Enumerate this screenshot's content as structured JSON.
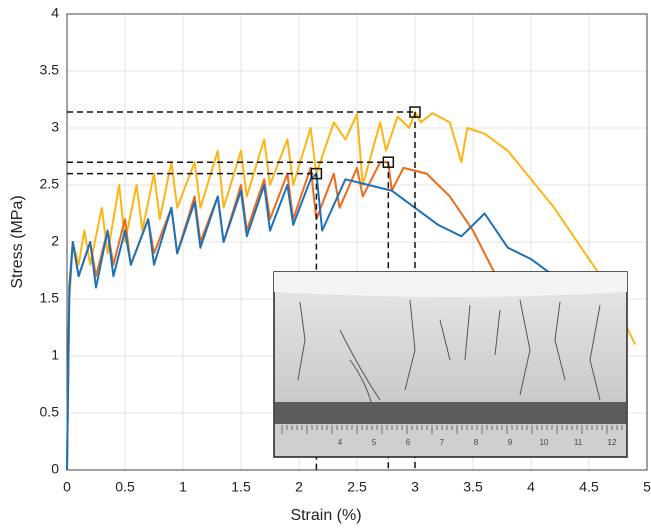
{
  "chart_data": {
    "type": "line",
    "xlabel": "Strain (%)",
    "ylabel": "Stress (MPa)",
    "xlim": [
      0,
      5
    ],
    "ylim": [
      0,
      4
    ],
    "xticks": [
      0,
      0.5,
      1,
      1.5,
      2,
      2.5,
      3,
      3.5,
      4,
      4.5,
      5
    ],
    "yticks": [
      0,
      0.5,
      1,
      1.5,
      2,
      2.5,
      3,
      3.5,
      4
    ],
    "grid": true,
    "series": [
      {
        "color": "#fdb515",
        "peak": [
          3.0,
          3.14
        ],
        "x": [
          0,
          0.02,
          0.05,
          0.1,
          0.15,
          0.2,
          0.3,
          0.35,
          0.45,
          0.5,
          0.6,
          0.65,
          0.75,
          0.8,
          0.9,
          0.95,
          1.1,
          1.15,
          1.3,
          1.35,
          1.5,
          1.55,
          1.7,
          1.75,
          1.9,
          1.95,
          2.1,
          2.15,
          2.3,
          2.4,
          2.5,
          2.55,
          2.7,
          2.75,
          2.85,
          2.95,
          3.0,
          3.05,
          3.15,
          3.3,
          3.4,
          3.45,
          3.6,
          3.8,
          4.0,
          4.2,
          4.4,
          4.6,
          4.8,
          4.9
        ],
        "values": [
          0,
          1.6,
          2.0,
          1.8,
          2.1,
          1.8,
          2.3,
          1.9,
          2.5,
          2.0,
          2.5,
          2.1,
          2.6,
          2.2,
          2.7,
          2.3,
          2.7,
          2.3,
          2.8,
          2.3,
          2.8,
          2.4,
          2.9,
          2.5,
          2.9,
          2.5,
          3.0,
          2.6,
          3.05,
          2.9,
          3.12,
          2.5,
          3.05,
          2.8,
          3.1,
          3.0,
          3.14,
          3.05,
          3.13,
          3.05,
          2.7,
          3.0,
          2.95,
          2.8,
          2.55,
          2.3,
          2.0,
          1.7,
          1.3,
          1.1
        ]
      },
      {
        "color": "#ee6a1f",
        "peak": [
          2.77,
          2.7
        ],
        "x": [
          0,
          0.02,
          0.05,
          0.1,
          0.2,
          0.25,
          0.35,
          0.4,
          0.5,
          0.55,
          0.7,
          0.75,
          0.9,
          0.95,
          1.1,
          1.15,
          1.3,
          1.35,
          1.5,
          1.55,
          1.7,
          1.75,
          1.9,
          1.95,
          2.1,
          2.15,
          2.3,
          2.35,
          2.5,
          2.55,
          2.7,
          2.77,
          2.8,
          2.9,
          3.1,
          3.3,
          3.5,
          3.7,
          3.9
        ],
        "values": [
          0,
          1.5,
          2.0,
          1.7,
          2.0,
          1.7,
          2.1,
          1.8,
          2.2,
          1.8,
          2.2,
          1.9,
          2.3,
          1.9,
          2.4,
          2.0,
          2.4,
          2.0,
          2.5,
          2.1,
          2.55,
          2.2,
          2.6,
          2.2,
          2.65,
          2.2,
          2.6,
          2.3,
          2.65,
          2.4,
          2.7,
          2.7,
          2.45,
          2.65,
          2.6,
          2.4,
          2.1,
          1.7,
          1.3
        ]
      },
      {
        "color": "#1a72bb",
        "peak": [
          2.15,
          2.6
        ],
        "x": [
          0,
          0.02,
          0.05,
          0.1,
          0.2,
          0.25,
          0.35,
          0.4,
          0.5,
          0.55,
          0.7,
          0.75,
          0.9,
          0.95,
          1.1,
          1.15,
          1.3,
          1.35,
          1.5,
          1.55,
          1.7,
          1.75,
          1.9,
          1.95,
          2.1,
          2.15,
          2.2,
          2.4,
          2.6,
          2.8,
          3.0,
          3.2,
          3.4,
          3.6,
          3.8,
          4.0,
          4.2
        ],
        "values": [
          0,
          1.6,
          2.0,
          1.7,
          2.0,
          1.6,
          2.1,
          1.7,
          2.1,
          1.8,
          2.2,
          1.8,
          2.3,
          1.9,
          2.35,
          1.95,
          2.4,
          2.0,
          2.45,
          2.05,
          2.5,
          2.1,
          2.5,
          2.15,
          2.55,
          2.6,
          2.1,
          2.55,
          2.5,
          2.45,
          2.3,
          2.15,
          2.05,
          2.25,
          1.95,
          1.85,
          1.7
        ]
      }
    ],
    "inset_ruler_labels": [
      "4",
      "5",
      "6",
      "7",
      "8",
      "9",
      "10",
      "11",
      "12"
    ]
  }
}
